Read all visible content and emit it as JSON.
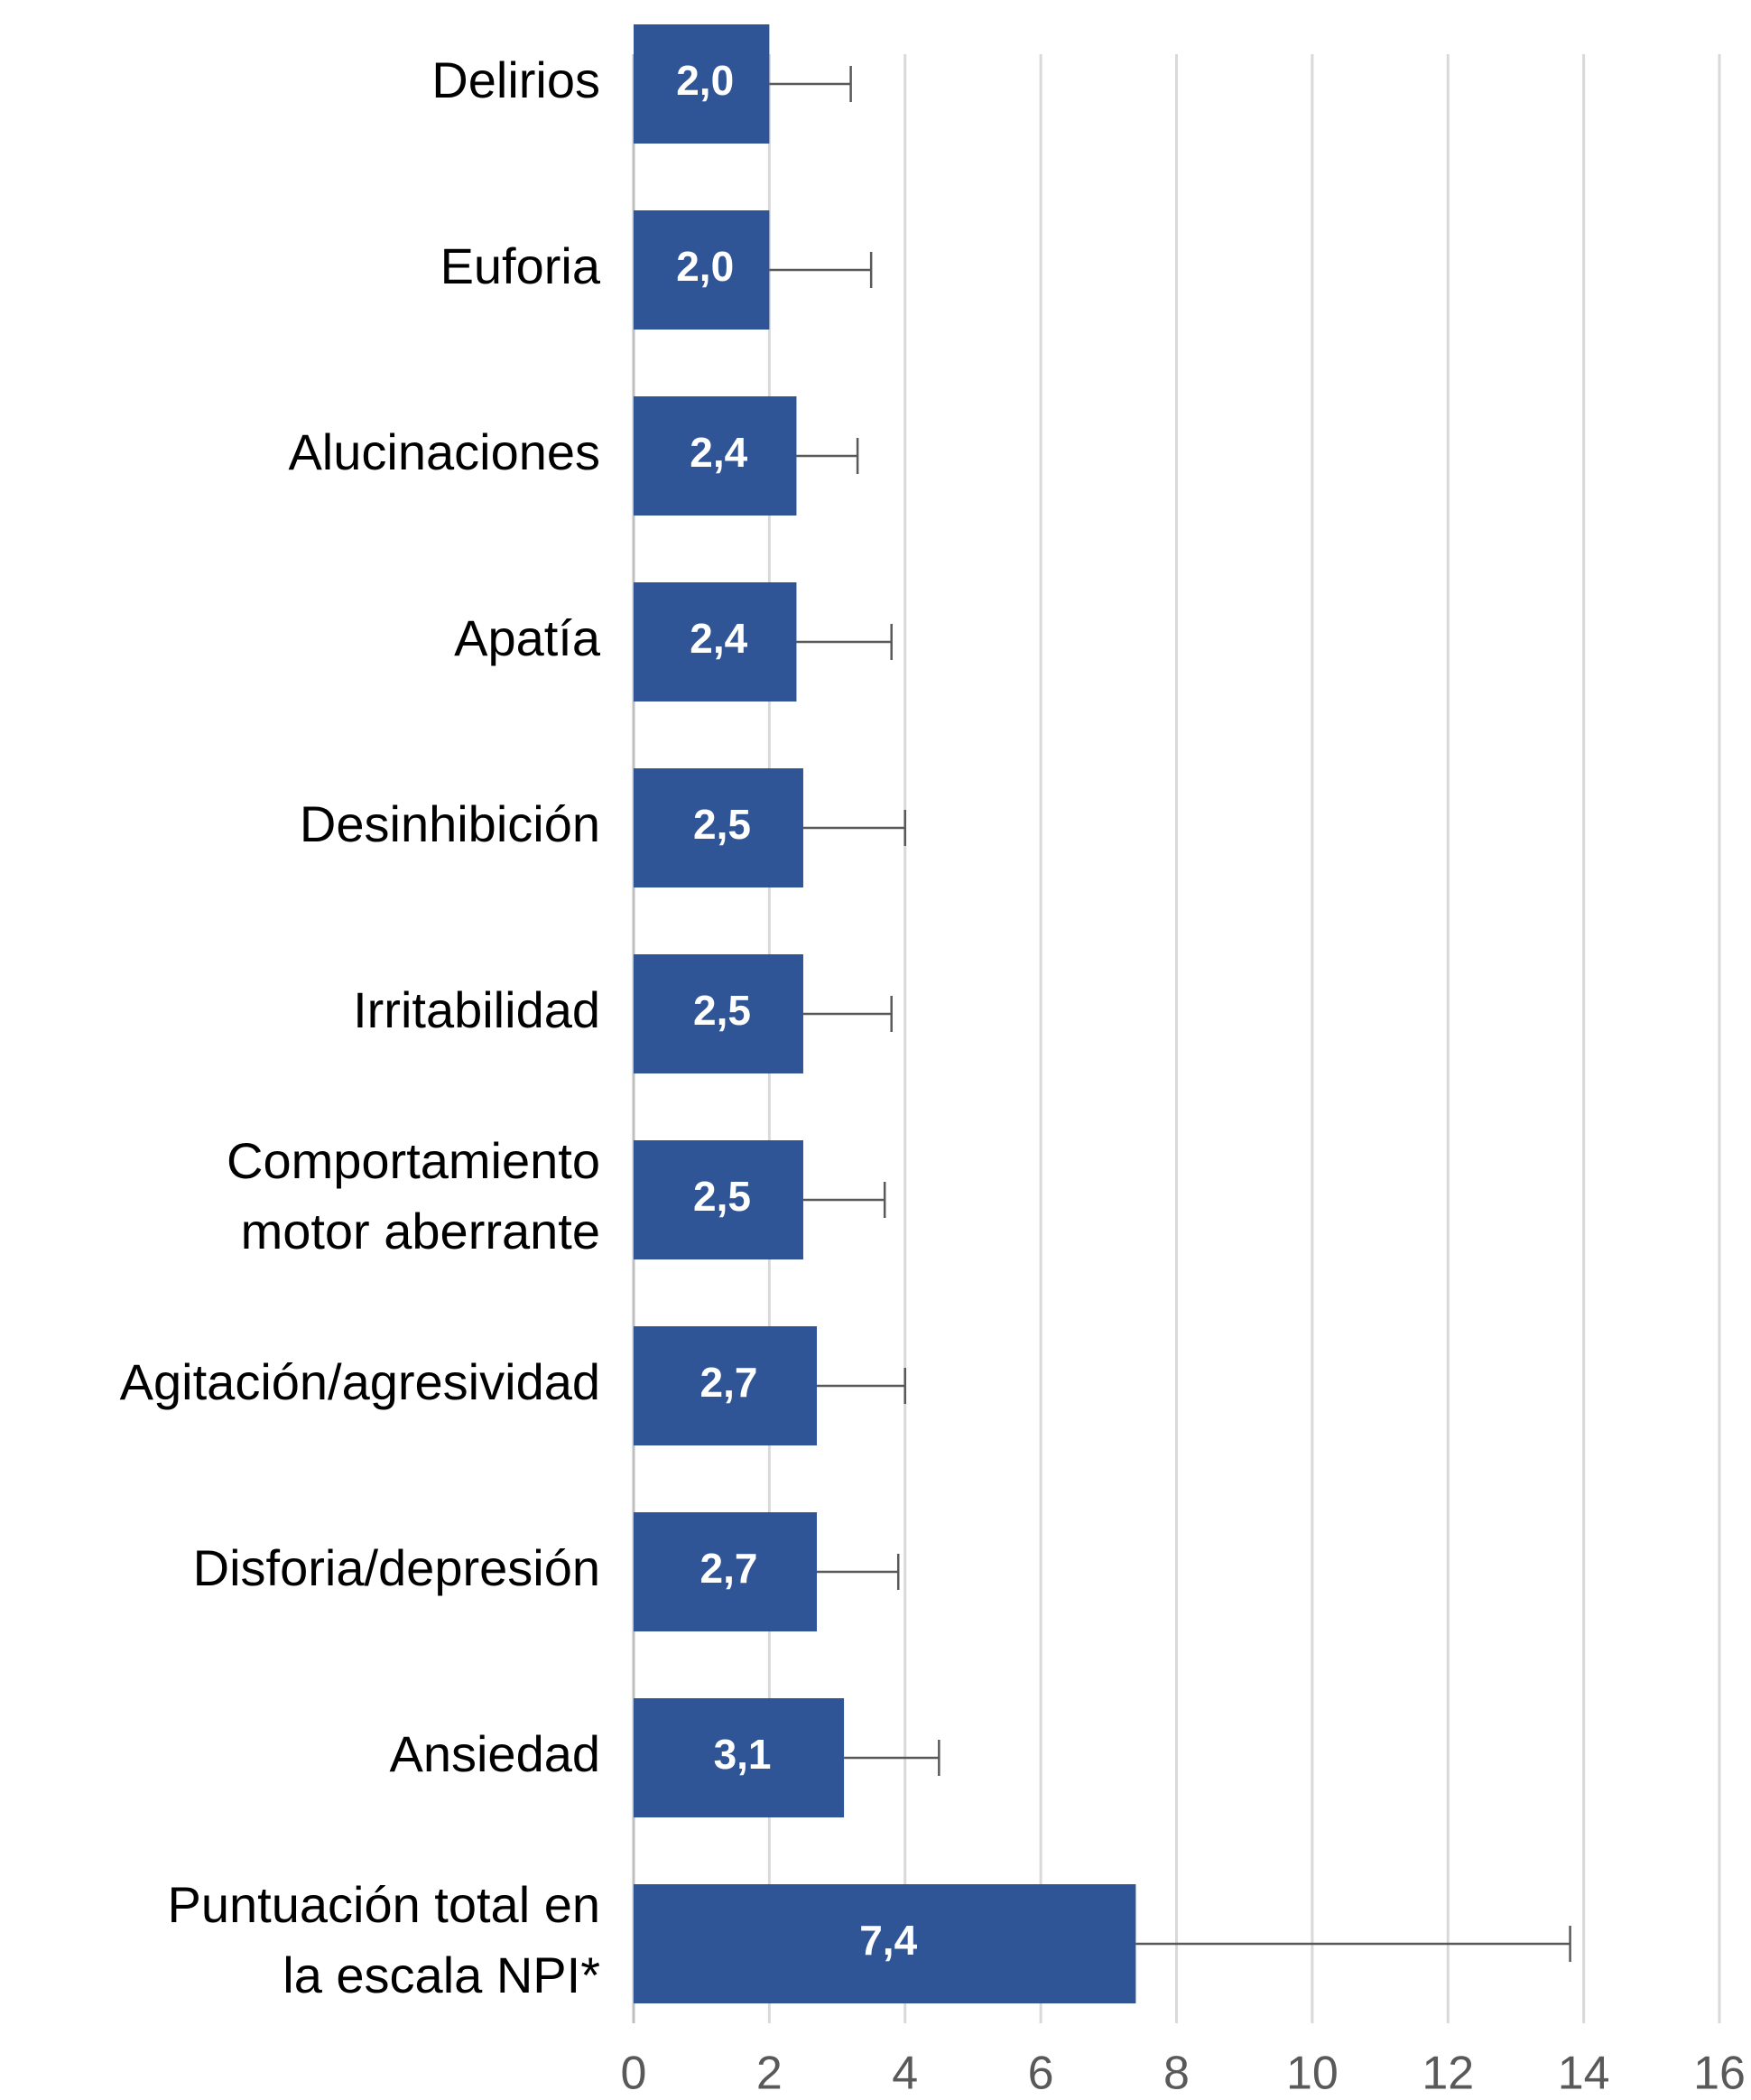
{
  "chart_data": {
    "type": "bar",
    "orientation": "horizontal",
    "categories": [
      "Delirios",
      "Euforia",
      "Alucinaciones",
      "Apatía",
      "Desinhibición",
      "Irritabilidad",
      "Comportamiento\nmotor aberrante",
      "Agitación/agresividad",
      "Disforia/depresión",
      "Ansiedad",
      "Puntuación total en\nla escala NPI*"
    ],
    "values": [
      2.0,
      2.0,
      2.4,
      2.4,
      2.5,
      2.5,
      2.5,
      2.7,
      2.7,
      3.1,
      7.4
    ],
    "value_labels": [
      "2,0",
      "2,0",
      "2,4",
      "2,4",
      "2,5",
      "2,5",
      "2,5",
      "2,7",
      "2,7",
      "3,1",
      "7,4"
    ],
    "errors": [
      1.2,
      1.5,
      0.9,
      1.4,
      1.5,
      1.3,
      1.2,
      1.3,
      1.2,
      1.4,
      6.4
    ],
    "color": "#2f5597",
    "xlim": [
      0,
      16
    ],
    "xticks": [
      0,
      2,
      4,
      6,
      8,
      10,
      12,
      14,
      16
    ],
    "grid": true
  }
}
